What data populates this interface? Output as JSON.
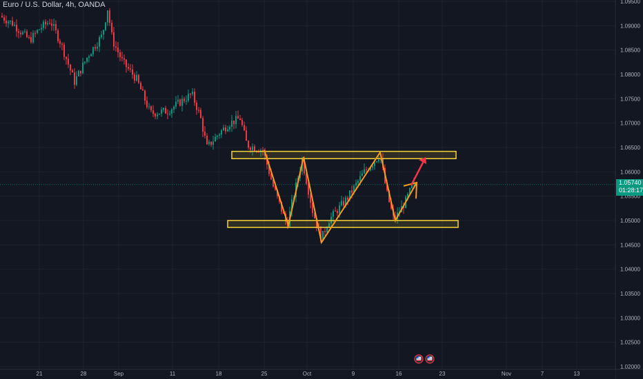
{
  "header": {
    "symbol_title": "Euro / U.S. Dollar, 4h, OANDA"
  },
  "price_tag": {
    "price": "1.05740",
    "countdown": "01:28:17",
    "color": "#089981"
  },
  "colors": {
    "up": "#089981",
    "down": "#f23645",
    "zone": "#f7d33b",
    "pattern": "#f89a1c",
    "arrow": "#f23645"
  },
  "chart_data": {
    "type": "candlestick",
    "title": "Euro / U.S. Dollar, 4h, OANDA",
    "ylim": [
      1.02,
      1.095
    ],
    "y_ticks": [
      "1.09500",
      "1.09000",
      "1.08500",
      "1.08000",
      "1.07500",
      "1.07000",
      "1.06500",
      "1.06000",
      "1.05500",
      "1.05000",
      "1.04500",
      "1.04000",
      "1.03500",
      "1.03000",
      "1.02500",
      "1.02000"
    ],
    "x_ticks": [
      "21",
      "28",
      "Sep",
      "11",
      "18",
      "25",
      "Oct",
      "9",
      "16",
      "23",
      "Nov",
      "7",
      "13"
    ],
    "last_price": 1.0574,
    "zones": [
      {
        "name": "resistance",
        "low": 1.0627,
        "high": 1.0642
      },
      {
        "name": "support",
        "low": 1.0488,
        "high": 1.05
      }
    ],
    "pattern_points": [
      {
        "date": "Sep 25",
        "price": 1.0645
      },
      {
        "date": "Sep 27",
        "price": 1.049
      },
      {
        "date": "Sep 29",
        "price": 1.063
      },
      {
        "date": "Oct 3",
        "price": 1.0455
      },
      {
        "date": "Oct 12",
        "price": 1.064
      },
      {
        "date": "Oct 16",
        "price": 1.05
      },
      {
        "date": "Oct 19",
        "price": 1.0578
      }
    ],
    "projection": {
      "from": 1.0578,
      "to": 1.063,
      "label": ""
    },
    "grid": true
  }
}
